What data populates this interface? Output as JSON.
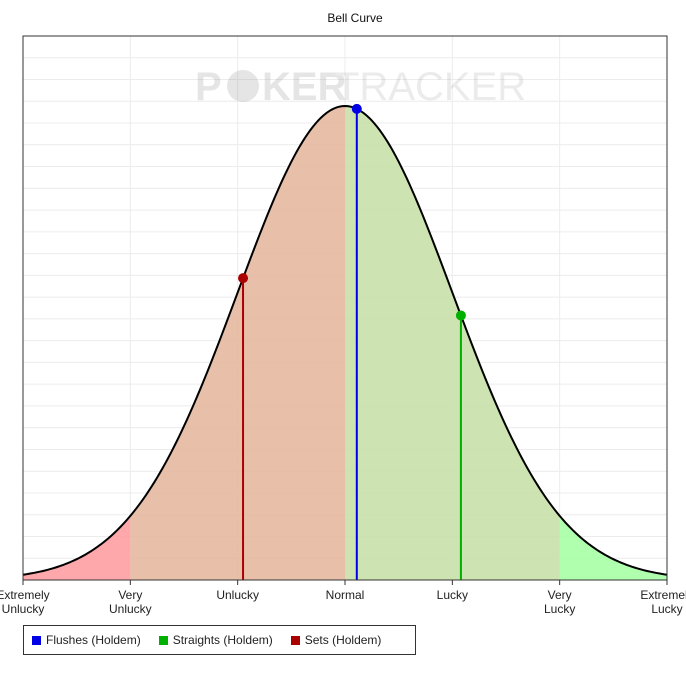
{
  "chart_data": {
    "type": "area",
    "title": "Bell Curve",
    "watermark": {
      "part1": "P",
      "part2": "KER",
      "part3": "TRACKER"
    },
    "curve": {
      "mean": 0,
      "sd": 1,
      "xlim": [
        -3,
        3
      ]
    },
    "zones": [
      {
        "from": -3,
        "to": -2,
        "color": "#ff9fa3"
      },
      {
        "from": -2,
        "to": 0,
        "color": "#e6b8a0"
      },
      {
        "from": 0,
        "to": 2,
        "color": "#c8e0a8"
      },
      {
        "from": 2,
        "to": 3,
        "color": "#a6ffa6"
      }
    ],
    "x_ticks": [
      {
        "x": -3,
        "lines": [
          "Extremely",
          "Unlucky"
        ]
      },
      {
        "x": -2,
        "lines": [
          "Very",
          "Unlucky"
        ]
      },
      {
        "x": -1,
        "lines": [
          "Unlucky"
        ]
      },
      {
        "x": 0,
        "lines": [
          "Normal"
        ]
      },
      {
        "x": 1,
        "lines": [
          "Lucky"
        ]
      },
      {
        "x": 2,
        "lines": [
          "Very",
          "Lucky"
        ]
      },
      {
        "x": 3,
        "lines": [
          "Extremely",
          "Lucky"
        ]
      }
    ],
    "series": [
      {
        "name": "Flushes (Holdem)",
        "x": 0.11,
        "color": "#0000e6"
      },
      {
        "name": "Straights (Holdem)",
        "x": 1.08,
        "color": "#00b000"
      },
      {
        "name": "Sets (Holdem)",
        "x": -0.95,
        "color": "#aa0000"
      }
    ],
    "grid": true,
    "legend": "bottom-left"
  }
}
